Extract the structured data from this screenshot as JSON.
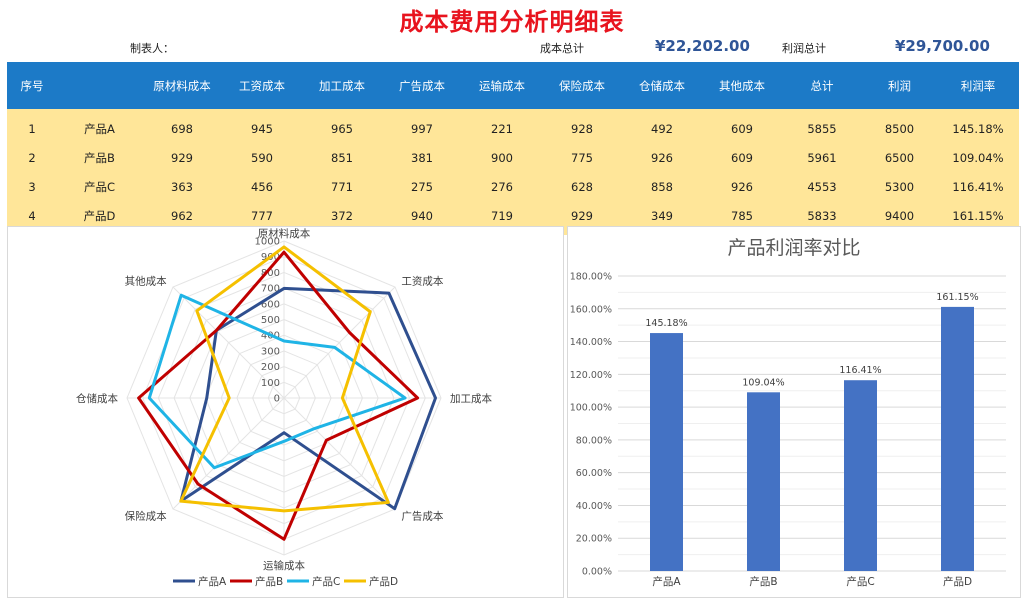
{
  "title": "成本费用分析明细表",
  "header": {
    "maker_label": "制表人：",
    "cost_total_label": "成本总计",
    "cost_total_value": "¥22,202.00",
    "profit_total_label": "利润总计",
    "profit_total_value": "¥29,700.00"
  },
  "table": {
    "columns": [
      "序号",
      "",
      "原材料成本",
      "工资成本",
      "加工成本",
      "广告成本",
      "运输成本",
      "保险成本",
      "仓储成本",
      "其他成本",
      "总计",
      "利润",
      "利润率"
    ],
    "rows": [
      [
        "1",
        "产品A",
        "698",
        "945",
        "965",
        "997",
        "221",
        "928",
        "492",
        "609",
        "5855",
        "8500",
        "145.18%"
      ],
      [
        "2",
        "产品B",
        "929",
        "590",
        "851",
        "381",
        "900",
        "775",
        "926",
        "609",
        "5961",
        "6500",
        "109.04%"
      ],
      [
        "3",
        "产品C",
        "363",
        "456",
        "771",
        "275",
        "276",
        "628",
        "858",
        "926",
        "4553",
        "5300",
        "116.41%"
      ],
      [
        "4",
        "产品D",
        "962",
        "777",
        "372",
        "940",
        "719",
        "929",
        "349",
        "785",
        "5833",
        "9400",
        "161.15%"
      ]
    ]
  },
  "chart_data": [
    {
      "type": "radar",
      "title": "",
      "categories": [
        "原材料成本",
        "工资成本",
        "加工成本",
        "广告成本",
        "运输成本",
        "保险成本",
        "仓储成本",
        "其他成本"
      ],
      "ticks": [
        "0",
        "100",
        "200",
        "300",
        "400",
        "500",
        "600",
        "700",
        "800",
        "900",
        "1000"
      ],
      "ylim": [
        0,
        1000
      ],
      "legend": "bottom",
      "series": [
        {
          "name": "产品A",
          "color": "#2f4f8f",
          "values": [
            698,
            945,
            965,
            997,
            221,
            928,
            492,
            609
          ]
        },
        {
          "name": "产品B",
          "color": "#c00000",
          "values": [
            929,
            590,
            851,
            381,
            900,
            775,
            926,
            609
          ]
        },
        {
          "name": "产品C",
          "color": "#1fb4e6",
          "values": [
            363,
            456,
            771,
            275,
            276,
            628,
            858,
            926
          ]
        },
        {
          "name": "产品D",
          "color": "#f5c000",
          "values": [
            962,
            777,
            372,
            940,
            719,
            929,
            349,
            785
          ]
        }
      ]
    },
    {
      "type": "bar",
      "title": "产品利润率对比",
      "categories": [
        "产品A",
        "产品B",
        "产品C",
        "产品D"
      ],
      "values": [
        145.18,
        109.04,
        116.41,
        161.15
      ],
      "data_labels": [
        "145.18%",
        "109.04%",
        "116.41%",
        "161.15%"
      ],
      "ylim": [
        0,
        180
      ],
      "yticks": [
        "0.00%",
        "20.00%",
        "40.00%",
        "60.00%",
        "80.00%",
        "100.00%",
        "120.00%",
        "140.00%",
        "160.00%",
        "180.00%"
      ],
      "bar_color": "#4472c4",
      "grid": true
    }
  ]
}
